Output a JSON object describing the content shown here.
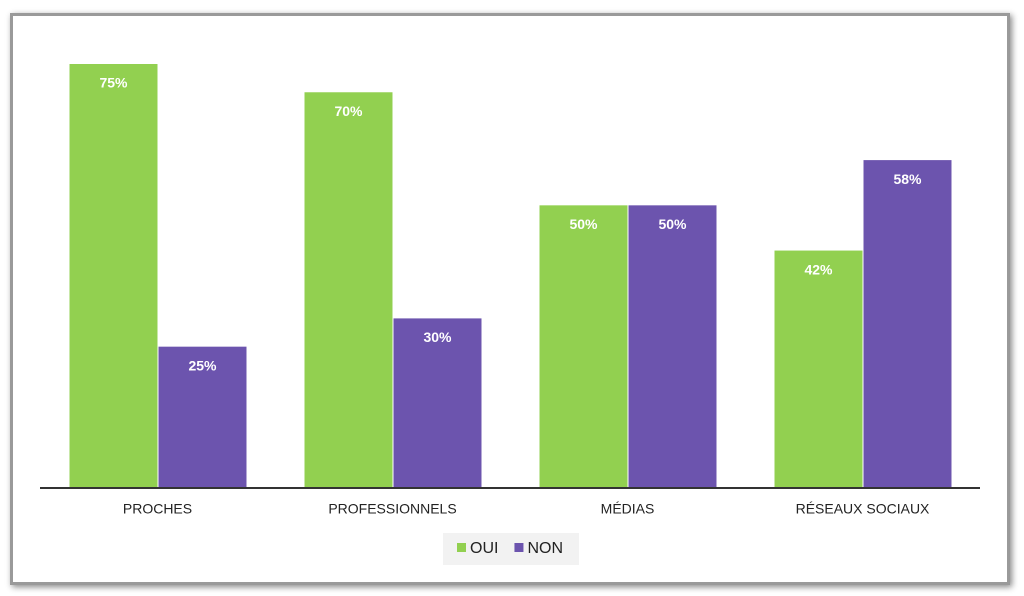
{
  "chart_data": {
    "type": "bar",
    "categories": [
      "PROCHES",
      "PROFESSIONNELS",
      "MÉDIAS",
      "RÉSEAUX SOCIAUX"
    ],
    "series": [
      {
        "name": "OUI",
        "color": "#92d050",
        "values": [
          75,
          70,
          50,
          42
        ],
        "value_labels": [
          "75%",
          "70%",
          "50%",
          "42%"
        ]
      },
      {
        "name": "NON",
        "color": "#6c54ae",
        "values": [
          25,
          30,
          50,
          58
        ],
        "value_labels": [
          "25%",
          "30%",
          "50%",
          "58%"
        ]
      }
    ]
  }
}
